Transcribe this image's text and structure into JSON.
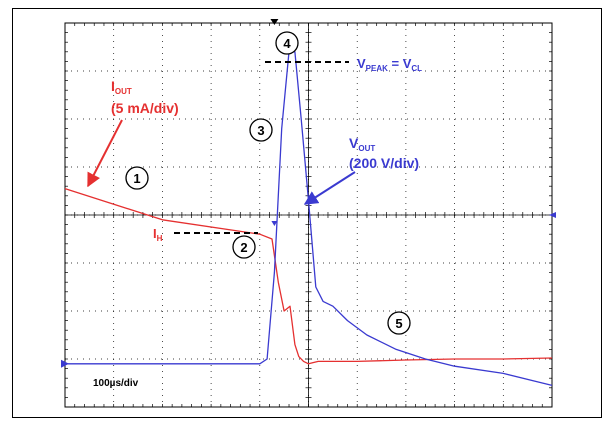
{
  "chart_data": {
    "type": "line",
    "title": "",
    "xlabel": "",
    "ylabel": "",
    "grid": true,
    "x_divisions": 10,
    "y_divisions": 8,
    "timebase_label": "100µs/div",
    "series": [
      {
        "name": "IOUT",
        "color": "#e53030",
        "x": [
          0,
          2.0,
          4.0,
          4.25,
          4.38,
          4.5,
          4.62,
          4.72,
          4.8,
          4.9,
          5.0,
          5.2,
          6.0,
          7.0,
          8.0,
          9.0,
          10.0
        ],
        "y": [
          0.55,
          -0.1,
          -0.4,
          -0.5,
          -1.4,
          -2.0,
          -1.9,
          -2.7,
          -2.95,
          -3.05,
          -3.1,
          -3.05,
          -3.05,
          -3.02,
          -3.0,
          -3.0,
          -2.98
        ]
      },
      {
        "name": "VOUT",
        "color": "#3a3ad0",
        "x": [
          0,
          4.0,
          4.15,
          4.3,
          4.45,
          4.6,
          4.72,
          4.85,
          5.0,
          5.15,
          5.3,
          5.5,
          5.8,
          6.2,
          6.8,
          7.4,
          8.0,
          9.0,
          10.0
        ],
        "y": [
          -3.1,
          -3.1,
          -3.0,
          -1.2,
          1.8,
          3.4,
          3.4,
          2.0,
          0.3,
          -1.5,
          -1.8,
          -1.9,
          -2.2,
          -2.5,
          -2.8,
          -3.0,
          -3.15,
          -3.3,
          -3.55
        ]
      }
    ],
    "annotations": {
      "iout_label": {
        "name": "I",
        "sub": "OUT",
        "scale": "(5 mA/div)"
      },
      "vout_label": {
        "name": "V",
        "sub": "OUT",
        "scale": "(200 V/div)"
      },
      "ih_label": {
        "name": "I",
        "sub": "H"
      },
      "vpeak_label": {
        "v1": "V",
        "s1": "PEAK",
        "eq": " = ",
        "v2": "V",
        "s2": "CL"
      },
      "markers": [
        "1",
        "2",
        "3",
        "4",
        "5"
      ]
    }
  }
}
